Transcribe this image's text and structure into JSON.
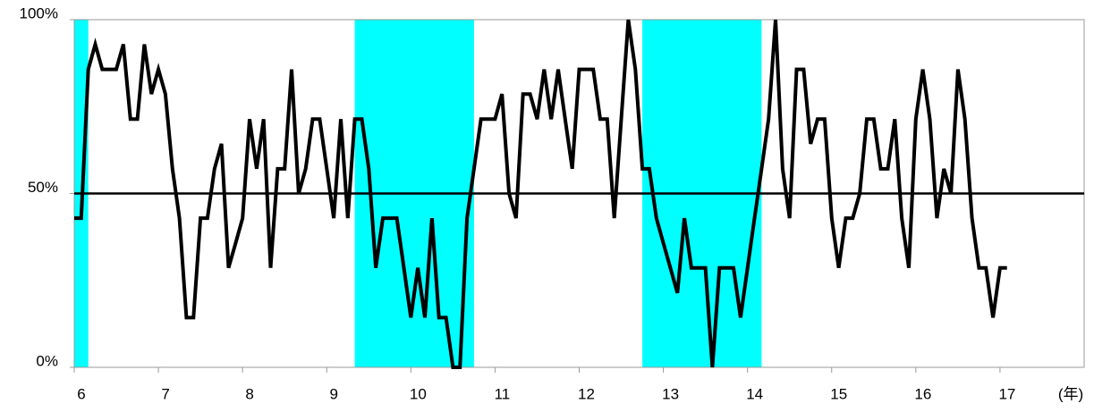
{
  "chart_data": {
    "type": "line",
    "x": [
      6,
      6.083,
      6.167,
      6.25,
      6.333,
      6.417,
      6.5,
      6.583,
      6.667,
      6.75,
      6.833,
      6.917,
      7,
      7.083,
      7.167,
      7.25,
      7.333,
      7.417,
      7.5,
      7.583,
      7.667,
      7.75,
      7.833,
      7.917,
      8,
      8.083,
      8.167,
      8.25,
      8.333,
      8.417,
      8.5,
      8.583,
      8.667,
      8.75,
      8.833,
      8.917,
      9,
      9.083,
      9.167,
      9.25,
      9.333,
      9.417,
      9.5,
      9.583,
      9.667,
      9.75,
      9.833,
      9.917,
      10,
      10.083,
      10.167,
      10.25,
      10.333,
      10.417,
      10.5,
      10.583,
      10.667,
      10.75,
      10.833,
      10.917,
      11,
      11.083,
      11.167,
      11.25,
      11.333,
      11.417,
      11.5,
      11.583,
      11.667,
      11.75,
      11.833,
      11.917,
      12,
      12.083,
      12.167,
      12.25,
      12.333,
      12.417,
      12.5,
      12.583,
      12.667,
      12.75,
      12.833,
      12.917,
      13,
      13.083,
      13.167,
      13.25,
      13.333,
      13.417,
      13.5,
      13.583,
      13.667,
      13.75,
      13.833,
      13.917,
      14,
      14.083,
      14.167,
      14.25,
      14.333,
      14.417,
      14.5,
      14.583,
      14.667,
      14.75,
      14.833,
      14.917,
      15,
      15.083,
      15.167,
      15.25,
      15.333,
      15.417,
      15.5,
      15.583,
      15.667,
      15.75,
      15.833,
      15.917,
      16,
      16.083,
      16.167,
      16.25,
      16.333,
      16.417,
      16.5,
      16.583,
      16.667,
      16.75,
      16.833,
      16.917,
      17,
      17.083
    ],
    "values": [
      42.9,
      42.9,
      85.7,
      92.9,
      85.7,
      85.7,
      85.7,
      92.9,
      71.4,
      71.4,
      92.9,
      78.6,
      85.7,
      78.6,
      57.1,
      42.9,
      14.3,
      14.3,
      42.9,
      42.9,
      57.1,
      64.3,
      28.6,
      35.7,
      42.9,
      71.4,
      57.1,
      71.4,
      28.6,
      57.1,
      57.1,
      85.7,
      50,
      57.1,
      71.4,
      71.4,
      57.1,
      42.9,
      71.4,
      42.9,
      71.4,
      71.4,
      57.1,
      28.6,
      42.9,
      42.9,
      42.9,
      28.6,
      14.3,
      28.6,
      14.3,
      42.9,
      14.3,
      14.3,
      0,
      0,
      42.9,
      57.1,
      71.4,
      71.4,
      71.4,
      78.6,
      50,
      42.9,
      78.6,
      78.6,
      71.4,
      85.7,
      71.4,
      85.7,
      71.4,
      57.1,
      85.7,
      85.7,
      85.7,
      71.4,
      71.4,
      42.9,
      71.4,
      100,
      85.7,
      57.1,
      57.1,
      42.9,
      35.7,
      28.6,
      21.4,
      42.9,
      28.6,
      28.6,
      28.6,
      0,
      28.6,
      28.6,
      28.6,
      14.3,
      28.6,
      42.9,
      57.1,
      71.4,
      100,
      57.1,
      42.9,
      85.7,
      85.7,
      64.3,
      71.4,
      71.4,
      42.9,
      28.6,
      42.9,
      42.9,
      50,
      71.4,
      71.4,
      57.1,
      57.1,
      71.4,
      42.9,
      28.6,
      71.4,
      85.7,
      71.4,
      42.9,
      57.1,
      50,
      85.7,
      71.4,
      42.9,
      28.6,
      28.6,
      14.3,
      28.6,
      28.6
    ],
    "color": "#000000",
    "shaded": [
      [
        6,
        6.167
      ],
      [
        9.333,
        10.75
      ],
      [
        12.75,
        14.167
      ]
    ],
    "shade_color": "#00ffff",
    "hline": 50,
    "xlim": [
      6,
      18
    ],
    "xticks": [
      6,
      7,
      8,
      9,
      10,
      11,
      12,
      13,
      14,
      15,
      16,
      17
    ],
    "ylim": [
      0,
      100
    ],
    "yticks": [
      {
        "value": 0,
        "label": "0%"
      },
      {
        "value": 50,
        "label": "50%"
      },
      {
        "value": 100,
        "label": "100%"
      }
    ],
    "x_label": "(年)"
  }
}
